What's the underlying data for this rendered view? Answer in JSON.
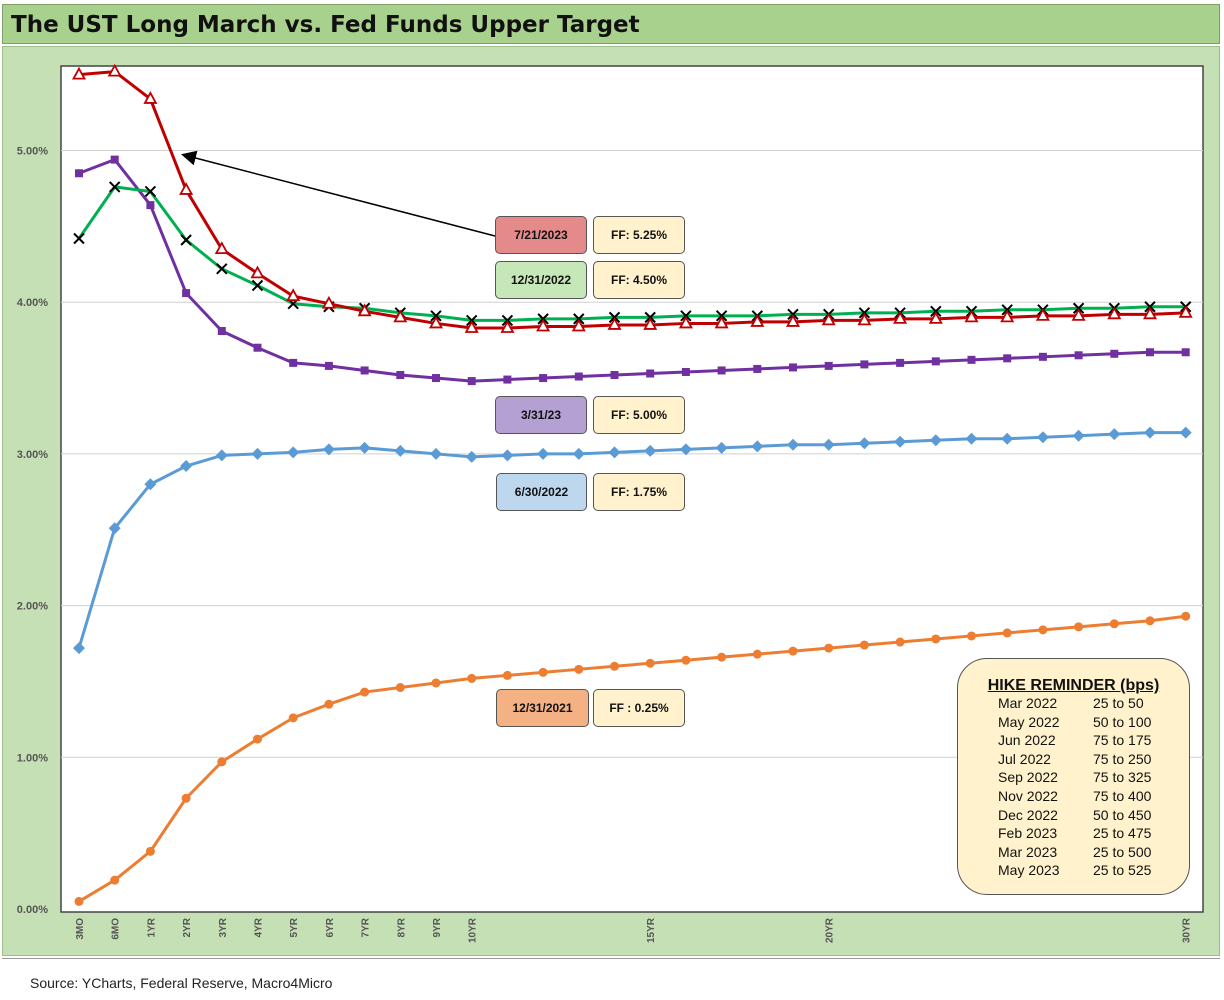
{
  "title": "The UST Long March vs. Fed Funds Upper Target",
  "source": "Source: YCharts, Federal Reserve, Macro4Micro",
  "chart_data": {
    "type": "line",
    "xlabel": "",
    "ylabel": "",
    "x": [
      "3MO",
      "6MO",
      "1YR",
      "2YR",
      "3YR",
      "4YR",
      "5YR",
      "6YR",
      "7YR",
      "8YR",
      "9YR",
      "10YR",
      "11YR",
      "12YR",
      "13YR",
      "14YR",
      "15YR",
      "16YR",
      "17YR",
      "18YR",
      "19YR",
      "20YR",
      "21YR",
      "22YR",
      "23YR",
      "24YR",
      "25YR",
      "26YR",
      "27YR",
      "28YR",
      "29YR",
      "30YR"
    ],
    "x_tick_labels": [
      "3MO",
      "6MO",
      "1YR",
      "2YR",
      "3YR",
      "4YR",
      "5YR",
      "6YR",
      "7YR",
      "8YR",
      "9YR",
      "10YR",
      "",
      "",
      "",
      "",
      "15YR",
      "",
      "",
      "",
      "",
      "20YR",
      "",
      "",
      "",
      "",
      "",
      "",
      "",
      "",
      "",
      "30YR"
    ],
    "ylim": [
      0,
      5.6
    ],
    "y_ticks": [
      "0.00%",
      "1.00%",
      "2.00%",
      "3.00%",
      "4.00%",
      "5.00%"
    ],
    "grid": true,
    "series": [
      {
        "id": "s2021",
        "name": "12/31/2021",
        "color": "#ed7d31",
        "marker": "circle",
        "values": [
          0.05,
          0.19,
          0.38,
          0.73,
          0.97,
          1.12,
          1.26,
          1.35,
          1.43,
          1.46,
          1.49,
          1.52,
          1.54,
          1.56,
          1.58,
          1.6,
          1.62,
          1.64,
          1.66,
          1.68,
          1.7,
          1.72,
          1.74,
          1.76,
          1.78,
          1.8,
          1.82,
          1.84,
          1.86,
          1.88,
          1.9,
          1.93
        ]
      },
      {
        "id": "s2022a",
        "name": "6/30/2022",
        "color": "#5b9bd5",
        "marker": "diamond",
        "values": [
          1.72,
          2.51,
          2.8,
          2.92,
          2.99,
          3.0,
          3.01,
          3.03,
          3.04,
          3.02,
          3.0,
          2.98,
          2.99,
          3.0,
          3.0,
          3.01,
          3.02,
          3.03,
          3.04,
          3.05,
          3.06,
          3.06,
          3.07,
          3.08,
          3.09,
          3.1,
          3.1,
          3.11,
          3.12,
          3.13,
          3.14,
          3.14
        ]
      },
      {
        "id": "s2023a",
        "name": "3/31/23",
        "color": "#7030a0",
        "marker": "square",
        "values": [
          4.85,
          4.94,
          4.64,
          4.06,
          3.81,
          3.7,
          3.6,
          3.58,
          3.55,
          3.52,
          3.5,
          3.48,
          3.49,
          3.5,
          3.51,
          3.52,
          3.53,
          3.54,
          3.55,
          3.56,
          3.57,
          3.58,
          3.59,
          3.6,
          3.61,
          3.62,
          3.63,
          3.64,
          3.65,
          3.66,
          3.67,
          3.67
        ]
      },
      {
        "id": "s2022b",
        "name": "12/31/2022",
        "color": "#00b050",
        "marker": "x",
        "values": [
          4.42,
          4.76,
          4.73,
          4.41,
          4.22,
          4.11,
          3.99,
          3.97,
          3.96,
          3.93,
          3.91,
          3.88,
          3.88,
          3.89,
          3.89,
          3.9,
          3.9,
          3.91,
          3.91,
          3.91,
          3.92,
          3.92,
          3.93,
          3.93,
          3.94,
          3.94,
          3.95,
          3.95,
          3.96,
          3.96,
          3.97,
          3.97
        ]
      },
      {
        "id": "s2023b",
        "name": "7/21/2023",
        "color": "#c00000",
        "marker": "triangle",
        "values": [
          5.5,
          5.52,
          5.34,
          4.74,
          4.35,
          4.19,
          4.04,
          3.99,
          3.94,
          3.9,
          3.86,
          3.83,
          3.83,
          3.84,
          3.84,
          3.85,
          3.85,
          3.86,
          3.86,
          3.87,
          3.87,
          3.88,
          3.88,
          3.89,
          3.89,
          3.9,
          3.9,
          3.91,
          3.91,
          3.92,
          3.92,
          3.93
        ]
      }
    ],
    "annotations": [
      {
        "series": "s2023b",
        "date": "7/21/2023",
        "ff": "FF: 5.25%",
        "date_bg": "#e58a8a",
        "arrow": true
      },
      {
        "series": "s2022b",
        "date": "12/31/2022",
        "ff": "FF: 4.50%",
        "date_bg": "#c6e8b8"
      },
      {
        "series": "s2023a",
        "date": "3/31/23",
        "ff": "FF: 5.00%",
        "date_bg": "#b4a0d2"
      },
      {
        "series": "s2022a",
        "date": "6/30/2022",
        "ff": "FF: 1.75%",
        "date_bg": "#bdd7ee"
      },
      {
        "series": "s2021",
        "date": "12/31/2021",
        "ff": "FF : 0.25%",
        "date_bg": "#f4b183"
      }
    ],
    "ff_bg": "#fff2cc"
  },
  "hike_reminder": {
    "title": "HIKE REMINDER (bps)",
    "rows": [
      {
        "date": "Mar 2022",
        "value": "25 to 50"
      },
      {
        "date": "May 2022",
        "value": "50 to 100"
      },
      {
        "date": "Jun 2022",
        "value": "75 to 175"
      },
      {
        "date": "Jul 2022",
        "value": "75 to 250"
      },
      {
        "date": "Sep 2022",
        "value": "75 to 325"
      },
      {
        "date": "Nov 2022",
        "value": "75 to 400"
      },
      {
        "date": "Dec 2022",
        "value": "50 to 450"
      },
      {
        "date": "Feb 2023",
        "value": "25 to 475"
      },
      {
        "date": "Mar 2023",
        "value": "25 to 500"
      },
      {
        "date": "May 2023",
        "value": "25 to 525"
      }
    ]
  }
}
